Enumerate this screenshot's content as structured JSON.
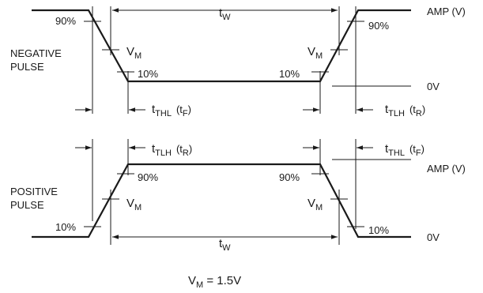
{
  "negative": {
    "title_line1": "NEGATIVE",
    "title_line2": "PULSE",
    "p90_left": "90%",
    "p90_right": "90%",
    "p10_left": "10%",
    "p10_right": "10%",
    "vm_left": {
      "main": "V",
      "sub": "M"
    },
    "vm_right": {
      "main": "V",
      "sub": "M"
    },
    "tw": {
      "main": "t",
      "sub": "W"
    },
    "amp": "AMP (V)",
    "zero": "0V",
    "fall": {
      "main": "t",
      "sub": "THL",
      "alt_open": "(t",
      "alt_sub": "F",
      "alt_close": ")"
    },
    "rise": {
      "main": "t",
      "sub": "TLH",
      "alt_open": "(t",
      "alt_sub": "R",
      "alt_close": ")"
    }
  },
  "positive": {
    "title_line1": "POSITIVE",
    "title_line2": "PULSE",
    "p90_left": "90%",
    "p90_right": "90%",
    "p10_left": "10%",
    "p10_right": "10%",
    "vm_left": {
      "main": "V",
      "sub": "M"
    },
    "vm_right": {
      "main": "V",
      "sub": "M"
    },
    "tw": {
      "main": "t",
      "sub": "W"
    },
    "amp": "AMP (V)",
    "zero": "0V",
    "rise": {
      "main": "t",
      "sub": "TLH",
      "alt_open": "(t",
      "alt_sub": "R",
      "alt_close": ")"
    },
    "fall": {
      "main": "t",
      "sub": "THL",
      "alt_open": "(t",
      "alt_sub": "F",
      "alt_close": ")"
    }
  },
  "footnote": {
    "main": "V",
    "sub": "M",
    "rest": " = 1.5V"
  }
}
